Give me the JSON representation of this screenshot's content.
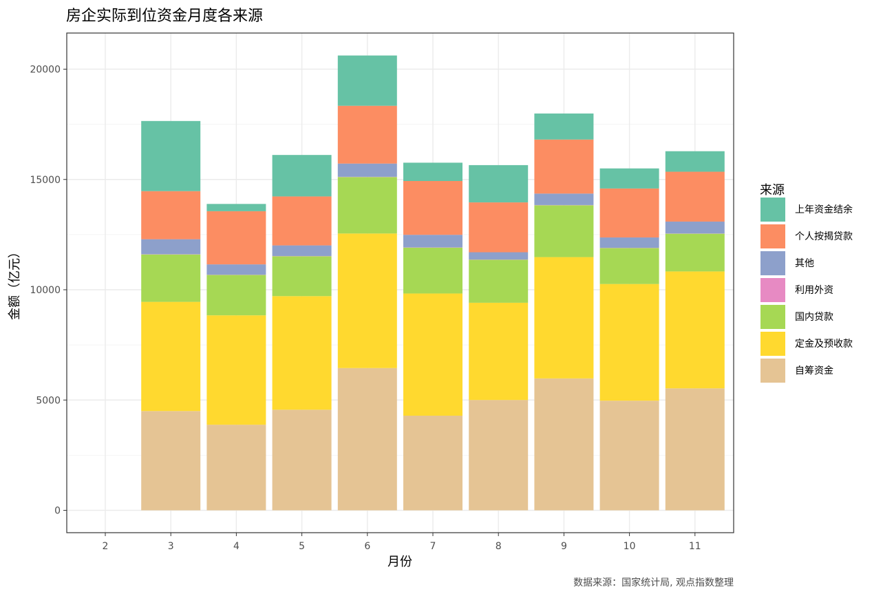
{
  "chart_data": {
    "type": "bar",
    "stacked": true,
    "title": "房企实际到位资金月度各来源",
    "xlabel": "月份",
    "ylabel": "金额（亿元）",
    "caption": "数据来源：国家统计局, 观点指数整理",
    "legend_title": "来源",
    "legend_position": "right",
    "grid": true,
    "theme": "bw",
    "categories": [
      "2",
      "3",
      "4",
      "5",
      "6",
      "7",
      "8",
      "9",
      "10",
      "11"
    ],
    "y_ticks": [
      0,
      5000,
      10000,
      15000,
      20000
    ],
    "y_tick_labels": [
      "0",
      "5000",
      "10000",
      "15000",
      "20000"
    ],
    "ylim": [
      -1000,
      21600
    ],
    "stack_order_bottom_to_top": [
      "自筹资金",
      "定金及预收款",
      "国内贷款",
      "利用外资",
      "其他",
      "个人按揭贷款",
      "上年资金结余"
    ],
    "series": [
      {
        "name": "上年资金结余",
        "color": "#66C2A5",
        "values": [
          null,
          3180,
          330,
          1880,
          2280,
          830,
          1690,
          1180,
          910,
          930
        ]
      },
      {
        "name": "个人按揭贷款",
        "color": "#FC8D62",
        "values": [
          null,
          2180,
          2410,
          2220,
          2620,
          2440,
          2260,
          2450,
          2220,
          2260
        ]
      },
      {
        "name": "其他",
        "color": "#8DA0CB",
        "values": [
          null,
          680,
          470,
          480,
          600,
          570,
          330,
          520,
          470,
          540
        ]
      },
      {
        "name": "利用外资",
        "color": "#E78AC3",
        "values": [
          null,
          10,
          10,
          10,
          10,
          10,
          10,
          10,
          10,
          10
        ]
      },
      {
        "name": "国内贷款",
        "color": "#A6D854",
        "values": [
          null,
          2150,
          1830,
          1810,
          2560,
          2080,
          1950,
          2350,
          1630,
          1710
        ]
      },
      {
        "name": "定金及预收款",
        "color": "#FFD92F",
        "values": [
          null,
          4950,
          4960,
          5150,
          6100,
          5540,
          4410,
          5500,
          5290,
          5300
        ]
      },
      {
        "name": "自筹资金",
        "color": "#E5C494",
        "values": [
          null,
          4500,
          3880,
          4560,
          6450,
          4290,
          5000,
          5980,
          4970,
          5530
        ]
      }
    ]
  }
}
